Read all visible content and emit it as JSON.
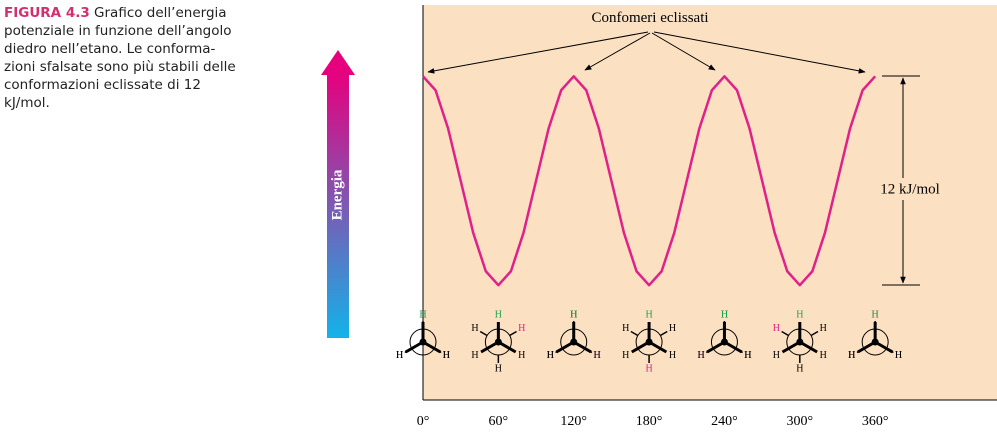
{
  "caption": {
    "label": "FIGURA 4.3",
    "lines": [
      "Grafico dell’energia",
      "potenziale in funzione dell’angolo",
      "diedro nell’etano. Le conforma-",
      "zioni sfalsate sono più stabili delle",
      "conformazioni eclissate di 12",
      "kJ/mol."
    ]
  },
  "chart_data": {
    "type": "line",
    "y_label": "Energia",
    "annotations": {
      "eclipsed": "Confomeri eclissati",
      "barrier": "12 kJ/mol"
    },
    "atom_label": "H",
    "x": [
      0,
      10,
      20,
      30,
      40,
      50,
      60,
      70,
      80,
      90,
      100,
      110,
      120,
      130,
      140,
      150,
      160,
      170,
      180,
      190,
      200,
      210,
      220,
      230,
      240,
      250,
      260,
      270,
      280,
      290,
      300,
      310,
      320,
      330,
      340,
      350,
      360
    ],
    "values": [
      12,
      11.2,
      9,
      6,
      3,
      0.8,
      0,
      0.8,
      3,
      6,
      9,
      11.2,
      12,
      11.2,
      9,
      6,
      3,
      0.8,
      0,
      0.8,
      3,
      6,
      9,
      11.2,
      12,
      11.2,
      9,
      6,
      3,
      0.8,
      0,
      0.8,
      3,
      6,
      9,
      11.2,
      12
    ],
    "color": "#e0218a",
    "xlim": [
      0,
      457
    ],
    "ylim": [
      -6.6,
      16.1
    ],
    "xticks": [
      {
        "value": 0,
        "label": "0°"
      },
      {
        "value": 60,
        "label": "60°"
      },
      {
        "value": 120,
        "label": "120°"
      },
      {
        "value": 180,
        "label": "180°"
      },
      {
        "value": 240,
        "label": "240°"
      },
      {
        "value": 300,
        "label": "300°"
      },
      {
        "value": 360,
        "label": "360°"
      }
    ],
    "grid": false
  }
}
